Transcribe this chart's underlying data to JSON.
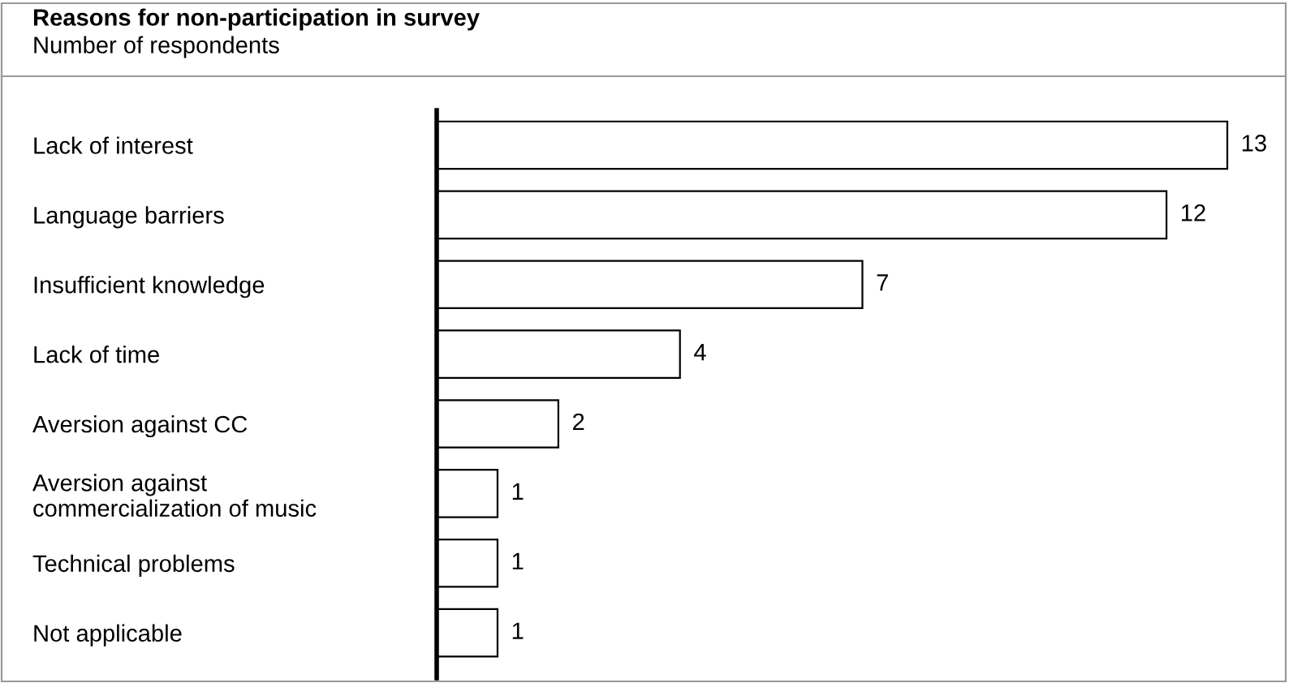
{
  "chart_data": {
    "type": "bar",
    "orientation": "horizontal",
    "title": "Reasons for non-participation in survey",
    "subtitle": "Number of respondents",
    "categories": [
      "Lack of interest",
      "Language barriers",
      "Insufficient knowledge",
      "Lack of time",
      "Aversion against CC",
      "Aversion against\ncommercialization of music",
      "Technical problems",
      "Not applicable"
    ],
    "values": [
      13,
      12,
      7,
      4,
      2,
      1,
      1,
      1
    ],
    "color": "#ffffff",
    "data_labels": true,
    "grid": false,
    "legend": false
  }
}
